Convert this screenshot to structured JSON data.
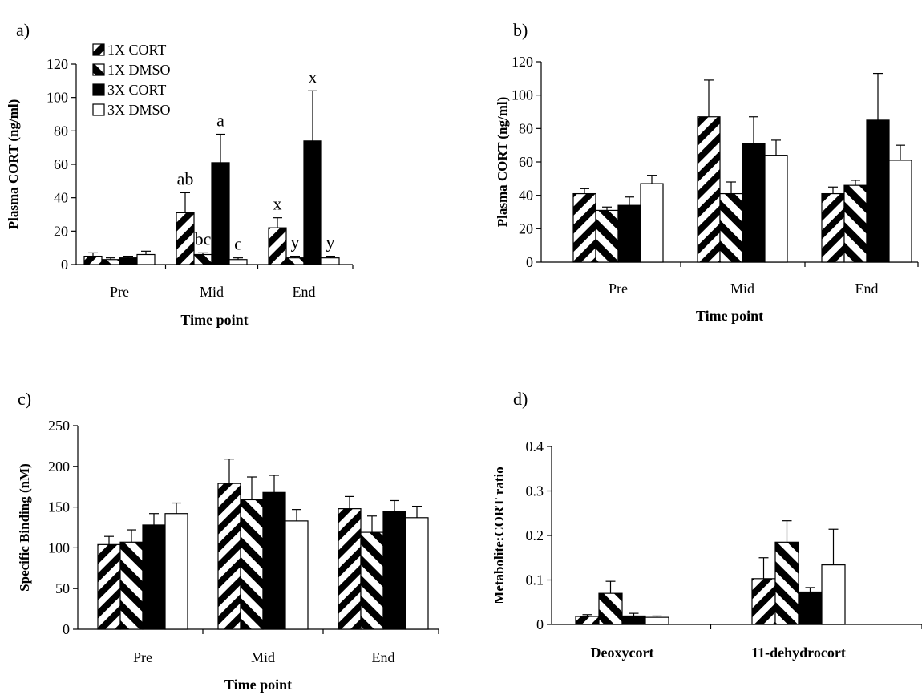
{
  "legend": [
    {
      "label": "1X CORT",
      "pattern": "diag-thin"
    },
    {
      "label": "1X DMSO",
      "pattern": "diag-thick"
    },
    {
      "label": "3X CORT",
      "pattern": "solid-black"
    },
    {
      "label": "3X DMSO",
      "pattern": "white"
    }
  ],
  "chart_data": [
    {
      "panel_label": "a)",
      "type": "bar",
      "ylabel": "Plasma CORT (ng/ml)",
      "xlabel": "Time point",
      "ylim": [
        0,
        120
      ],
      "yticks": [
        0,
        20,
        40,
        60,
        80,
        100,
        120
      ],
      "categories": [
        "Pre",
        "Mid",
        "End"
      ],
      "series": [
        {
          "name": "1X CORT",
          "values": [
            5,
            31,
            22
          ],
          "errors": [
            2,
            12,
            6
          ]
        },
        {
          "name": "1X DMSO",
          "values": [
            3,
            6,
            4
          ],
          "errors": [
            1,
            1,
            1
          ]
        },
        {
          "name": "3X CORT",
          "values": [
            4,
            61,
            74
          ],
          "errors": [
            1,
            17,
            30
          ]
        },
        {
          "name": "3X DMSO",
          "values": [
            6,
            3,
            4
          ],
          "errors": [
            2,
            1,
            1
          ]
        }
      ],
      "annotations": [
        {
          "category": "Mid",
          "series": "1X CORT",
          "text": "ab"
        },
        {
          "category": "Mid",
          "series": "1X DMSO",
          "text": "bc"
        },
        {
          "category": "Mid",
          "series": "3X CORT",
          "text": "a"
        },
        {
          "category": "Mid",
          "series": "3X DMSO",
          "text": "c"
        },
        {
          "category": "End",
          "series": "1X CORT",
          "text": "x"
        },
        {
          "category": "End",
          "series": "1X DMSO",
          "text": "y"
        },
        {
          "category": "End",
          "series": "3X CORT",
          "text": "x"
        },
        {
          "category": "End",
          "series": "3X DMSO",
          "text": "y"
        }
      ],
      "legend": "top-left"
    },
    {
      "panel_label": "b)",
      "type": "bar",
      "ylabel": "Plasma CORT (ng/ml)",
      "xlabel": "Time point",
      "ylim": [
        0,
        120
      ],
      "yticks": [
        0,
        20,
        40,
        60,
        80,
        100,
        120
      ],
      "categories": [
        "Pre",
        "Mid",
        "End"
      ],
      "series": [
        {
          "name": "1X CORT",
          "values": [
            41,
            87,
            41
          ],
          "errors": [
            3,
            22,
            4
          ]
        },
        {
          "name": "1X DMSO",
          "values": [
            31,
            41,
            46
          ],
          "errors": [
            2,
            7,
            3
          ]
        },
        {
          "name": "3X CORT",
          "values": [
            34,
            71,
            85
          ],
          "errors": [
            5,
            16,
            28
          ]
        },
        {
          "name": "3X DMSO",
          "values": [
            47,
            64,
            61
          ],
          "errors": [
            5,
            9,
            9
          ]
        }
      ]
    },
    {
      "panel_label": "c)",
      "type": "bar",
      "ylabel": "Specific Binding (nM)",
      "xlabel": "Time point",
      "ylim": [
        0,
        250
      ],
      "yticks": [
        0,
        50,
        100,
        150,
        200,
        250
      ],
      "categories": [
        "Pre",
        "Mid",
        "End"
      ],
      "series": [
        {
          "name": "1X CORT",
          "values": [
            104,
            179,
            148
          ],
          "errors": [
            10,
            30,
            15
          ]
        },
        {
          "name": "1X DMSO",
          "values": [
            107,
            159,
            119
          ],
          "errors": [
            15,
            28,
            20
          ]
        },
        {
          "name": "3X CORT",
          "values": [
            128,
            168,
            145
          ],
          "errors": [
            14,
            21,
            13
          ]
        },
        {
          "name": "3X DMSO",
          "values": [
            142,
            133,
            137
          ],
          "errors": [
            13,
            14,
            14
          ]
        }
      ]
    },
    {
      "panel_label": "d)",
      "type": "bar",
      "ylabel": "Metabolite:CORT ratio",
      "xlabel": "",
      "ylim": [
        0,
        0.4
      ],
      "yticks": [
        0,
        0.1,
        0.2,
        0.3,
        0.4
      ],
      "yticklabels": [
        "0",
        "0.1",
        "0.2",
        "0.3",
        "0.4"
      ],
      "categories": [
        "Deoxycort",
        "11-dehydrocort"
      ],
      "series": [
        {
          "name": "1X CORT",
          "values": [
            0.018,
            0.103
          ],
          "errors": [
            0.004,
            0.047
          ]
        },
        {
          "name": "1X DMSO",
          "values": [
            0.07,
            0.185
          ],
          "errors": [
            0.027,
            0.048
          ]
        },
        {
          "name": "3X CORT",
          "values": [
            0.019,
            0.073
          ],
          "errors": [
            0.006,
            0.01
          ]
        },
        {
          "name": "3X DMSO",
          "values": [
            0.016,
            0.134
          ],
          "errors": [
            0.003,
            0.08
          ]
        }
      ]
    }
  ]
}
